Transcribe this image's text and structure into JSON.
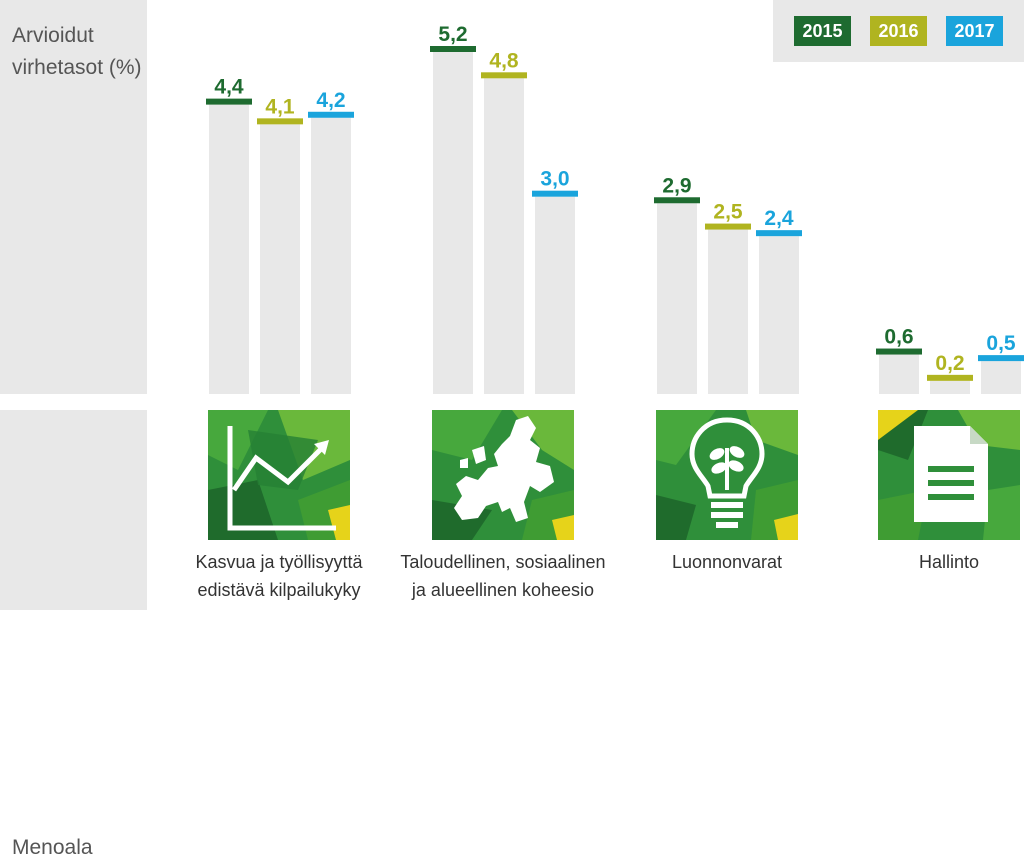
{
  "labels": {
    "y_axis": "Arvioidut virhetasot (%)",
    "category_axis": "Menoala"
  },
  "chart_data": {
    "type": "bar",
    "title": "",
    "xlabel": "Menoala",
    "ylabel": "Arvioidut virhetasot (%)",
    "ylim": [
      0,
      5.2
    ],
    "categories": [
      "Kasvua ja työllisyyttä edistävä kilpailukyky",
      "Taloudellinen, sosiaalinen ja alueellinen koheesio",
      "Luonnonvarat",
      "Hallinto"
    ],
    "series": [
      {
        "name": "2015",
        "color": "#1e6b30",
        "values": [
          4.4,
          5.2,
          2.9,
          0.6
        ],
        "labels": [
          "4,4",
          "5,2",
          "2,9",
          "0,6"
        ]
      },
      {
        "name": "2016",
        "color": "#b0b420",
        "values": [
          4.1,
          4.8,
          2.5,
          0.2
        ],
        "labels": [
          "4,1",
          "4,8",
          "2,5",
          "0,2"
        ]
      },
      {
        "name": "2017",
        "color": "#1aa4dc",
        "values": [
          4.2,
          3.0,
          2.4,
          0.5
        ],
        "labels": [
          "4,2",
          "3,0",
          "2,4",
          "0,5"
        ]
      }
    ],
    "legend": "top-right"
  },
  "category_lines": [
    [
      "Kasvua ja työllisyyttä",
      "edistävä kilpailukyky"
    ],
    [
      "Taloudellinen, sosiaalinen",
      "ja alueellinen koheesio"
    ],
    [
      "Luonnonvarat"
    ],
    [
      "Hallinto"
    ]
  ],
  "icons": [
    "growth-chart-icon",
    "europe-map-icon",
    "lightbulb-plant-icon",
    "document-icon"
  ]
}
